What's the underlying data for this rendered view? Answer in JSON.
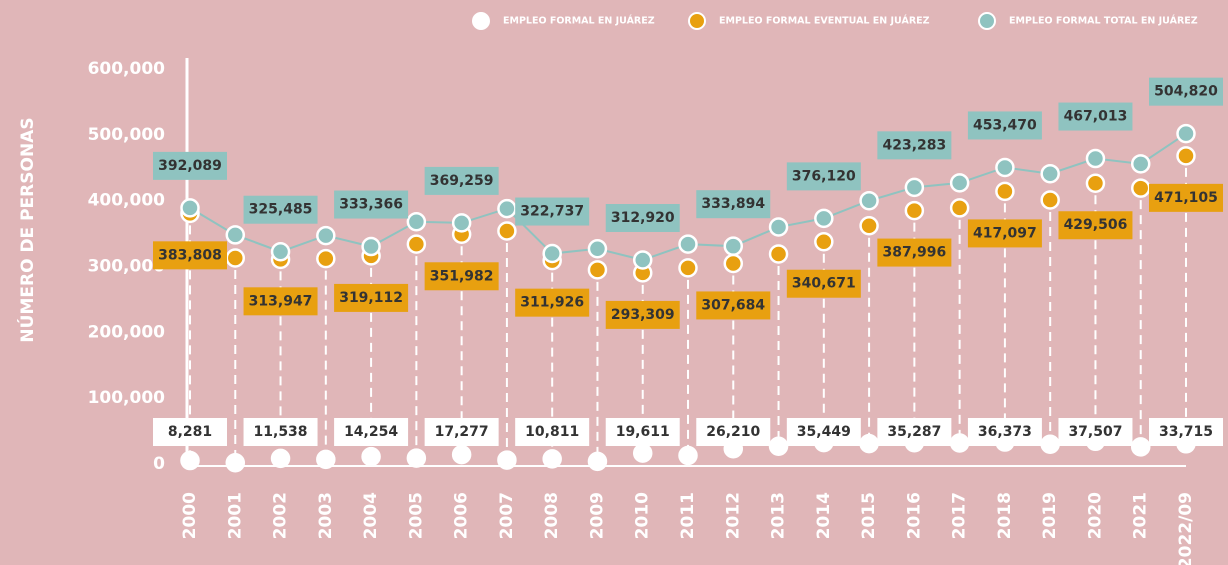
{
  "chart_data": {
    "type": "line",
    "y_axis_label": "NÚMERO DE PERSONAS",
    "categories": [
      "2000",
      "2001",
      "2002",
      "2003",
      "2004",
      "2005",
      "2006",
      "2007",
      "2008",
      "2009",
      "2010",
      "2011",
      "2012",
      "2013",
      "2014",
      "2015",
      "2016",
      "2017",
      "2018",
      "2019",
      "2020",
      "2021",
      "2022/09"
    ],
    "ylim": [
      0,
      600000
    ],
    "yticks": [
      0,
      {
        "value": 100000,
        "label": "100,000"
      },
      {
        "value": 200000,
        "label": "200,000"
      },
      {
        "value": 300000,
        "label": "300,000"
      },
      {
        "value": 400000,
        "label": "400,000"
      },
      {
        "value": 500000,
        "label": "500,000"
      },
      {
        "value": 600000,
        "label": "600,000"
      }
    ],
    "legend": "top-right",
    "series": [
      {
        "name": "EMPLEO FORMAL EN JUÁREZ",
        "color": "#ffffff",
        "values": [
          8281,
          5000,
          11538,
          10000,
          14254,
          12000,
          17277,
          9000,
          10811,
          7000,
          19611,
          16000,
          26210,
          30000,
          35449,
          34000,
          35287,
          35000,
          36373,
          33000,
          37507,
          29000,
          33715
        ],
        "value_labels": [
          "8,281",
          null,
          "11,538",
          null,
          "14,254",
          null,
          "17,277",
          null,
          "10,811",
          null,
          "19,611",
          null,
          "26,210",
          null,
          "35,449",
          null,
          "35,287",
          null,
          "36,373",
          null,
          "37,507",
          null,
          "33,715"
        ]
      },
      {
        "name": "EMPLEO FORMAL EVENTUAL EN JUÁREZ",
        "color": "#e8a010",
        "values": [
          383808,
          316000,
          313947,
          315000,
          319112,
          337000,
          351982,
          357000,
          311926,
          298000,
          293309,
          301000,
          307684,
          322000,
          340671,
          365000,
          387996,
          392000,
          417097,
          404000,
          429506,
          422000,
          471105
        ],
        "value_labels": [
          "383,808",
          null,
          "313,947",
          null,
          "319,112",
          null,
          "351,982",
          null,
          "311,926",
          null,
          "293,309",
          null,
          "307,684",
          null,
          "340,671",
          null,
          "387,996",
          null,
          "417,097",
          null,
          "429,506",
          null,
          "471,105"
        ]
      },
      {
        "name": "EMPLEO FORMAL TOTAL EN JUÁREZ",
        "color": "#8fc3c0",
        "values": [
          392089,
          351000,
          325485,
          350000,
          333366,
          371000,
          369259,
          391000,
          322737,
          330000,
          312920,
          337000,
          333894,
          363000,
          376120,
          403000,
          423283,
          430000,
          453470,
          444000,
          467013,
          459000,
          504820
        ],
        "value_labels": [
          "392,089",
          null,
          "325,485",
          null,
          "333,366",
          null,
          "369,259",
          null,
          "322,737",
          null,
          "312,920",
          null,
          "333,894",
          null,
          "376,120",
          null,
          "423,283",
          null,
          "453,470",
          null,
          "467,013",
          null,
          "504,820"
        ]
      }
    ]
  }
}
